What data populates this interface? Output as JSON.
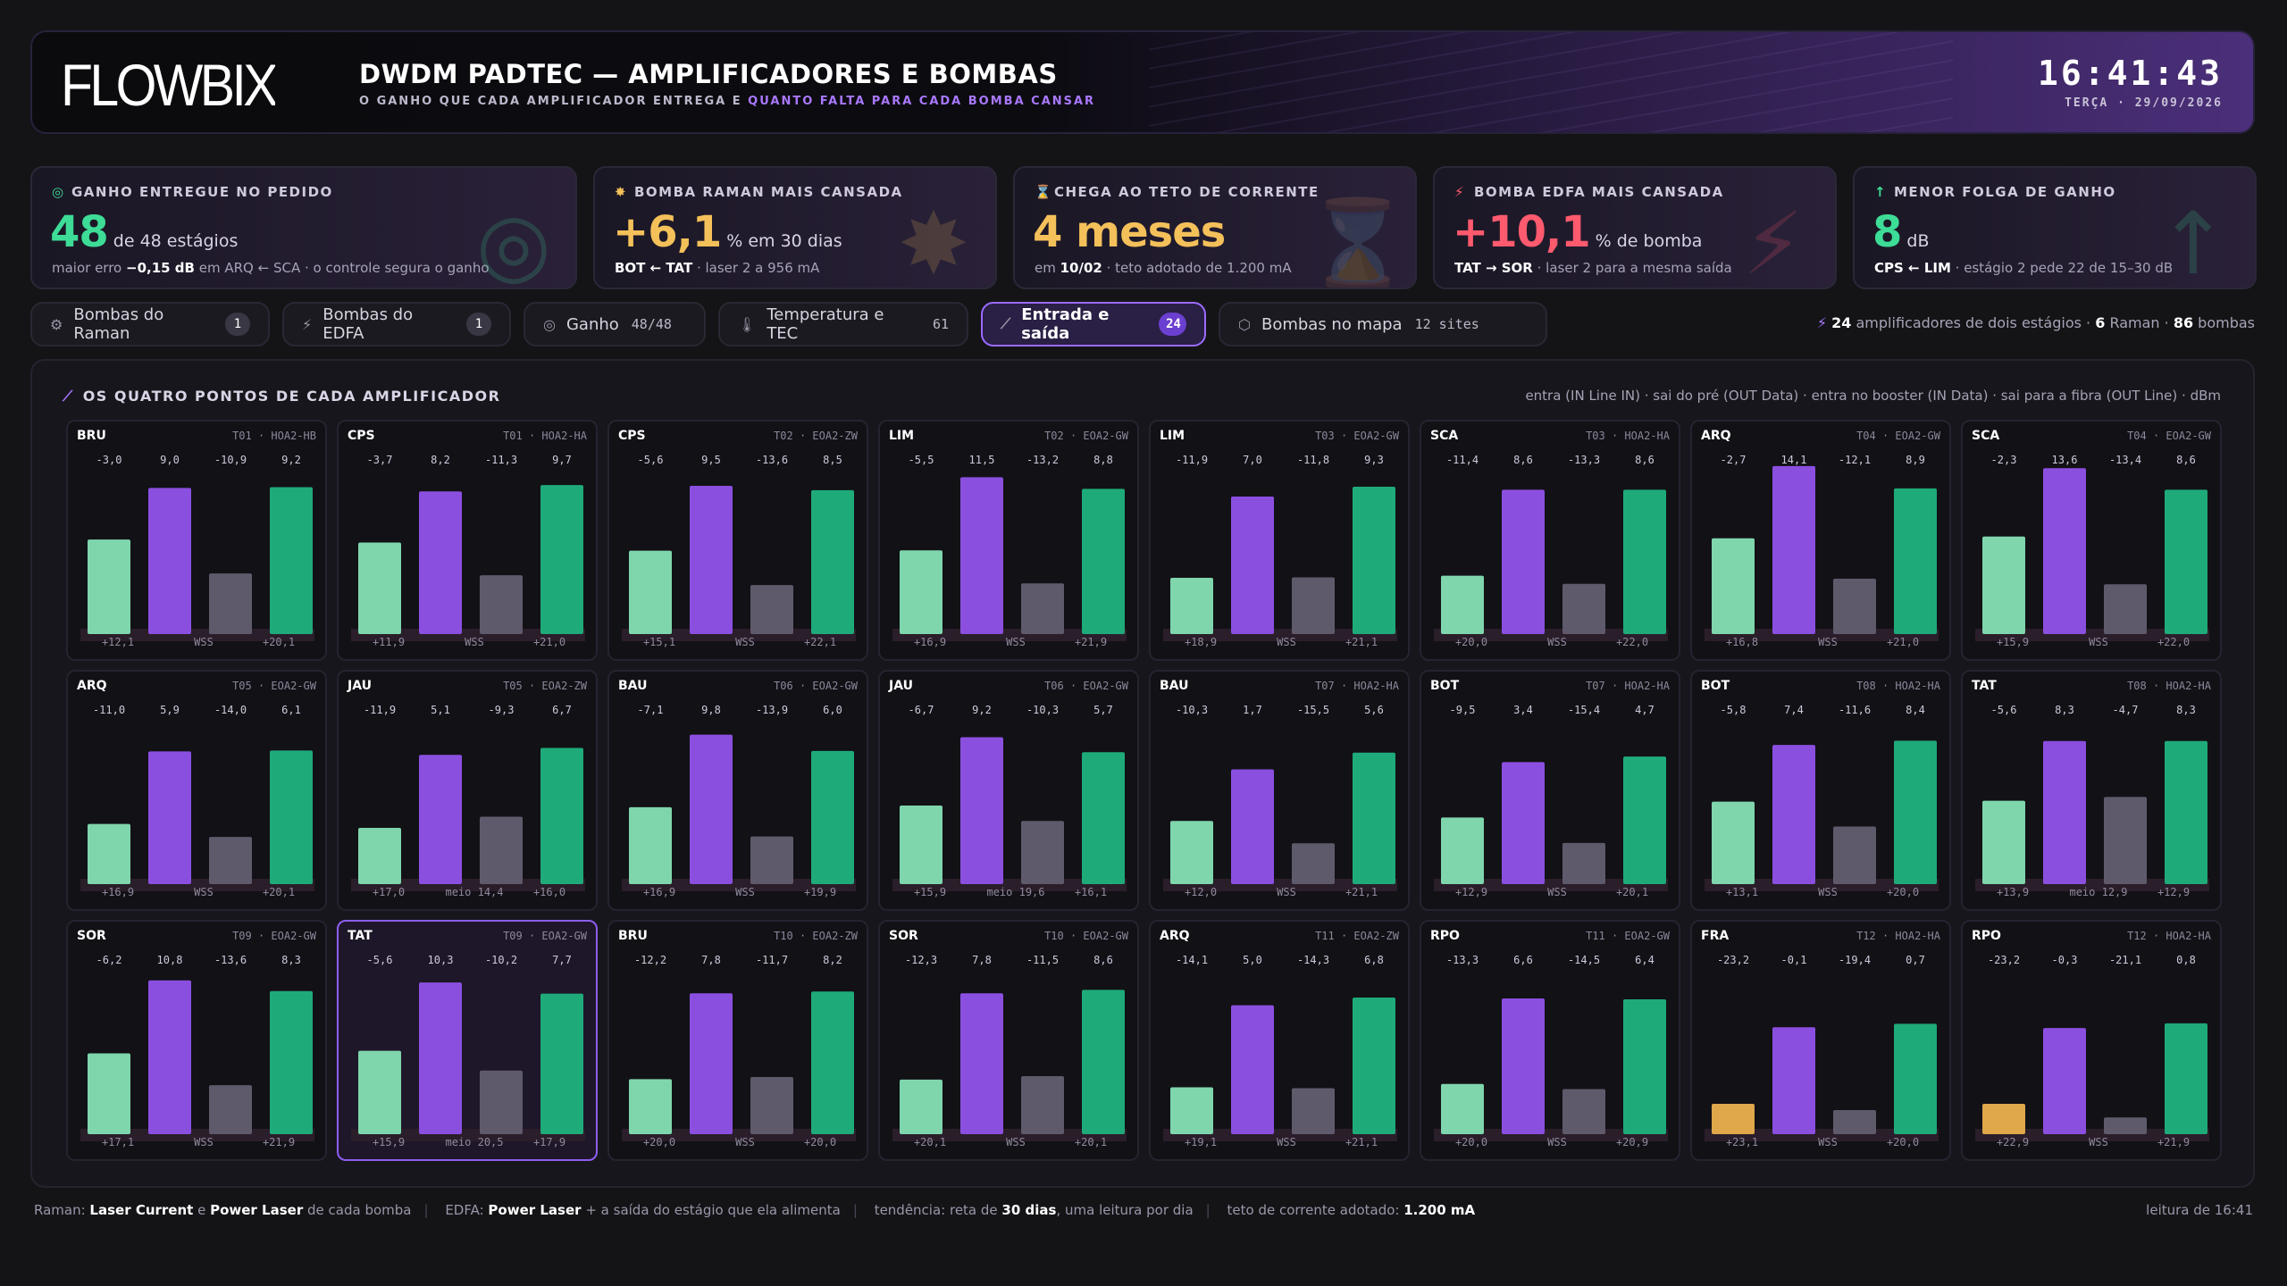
{
  "header": {
    "logo": "FLOWBIX",
    "title": "DWDM PADTEC — AMPLIFICADORES E BOMBAS",
    "subtitle_a": "O GANHO QUE CADA AMPLIFICADOR ENTREGA E ",
    "subtitle_b": "QUANTO FALTA PARA CADA BOMBA CANSAR",
    "time": "16:41:43",
    "date": "TERÇA · 29/09/2026"
  },
  "kpis": [
    {
      "icon": "target-icon",
      "glyph": "◎",
      "label": "GANHO ENTREGUE NO PEDIDO",
      "value": "48",
      "unit": "de 48 estágios",
      "color": "#3ddc97",
      "foot": "maior erro <b>−0,15 dB</b> em ARQ ← SCA · o controle segura o ganho"
    },
    {
      "icon": "gear-icon",
      "glyph": "✸",
      "label": "BOMBA RAMAN MAIS CANSADA",
      "value": "+6,1",
      "unit": "% em 30 dias",
      "color": "#f4c05a",
      "foot": "<b>BOT ← TAT</b> · laser 2 a 956 mA"
    },
    {
      "icon": "hourglass-icon",
      "glyph": "⌛",
      "label": "CHEGA AO TETO DE CORRENTE",
      "value": "4 meses",
      "unit": "",
      "color": "#f4c05a",
      "foot": "em <b>10/02</b> · teto adotado de 1.200 mA"
    },
    {
      "icon": "bolt-icon",
      "glyph": "⚡",
      "label": "BOMBA EDFA MAIS CANSADA",
      "value": "+10,1",
      "unit": "% de bomba",
      "color": "#ff5a6e",
      "foot": "<b>TAT → SOR</b> · laser 2 para a mesma saída"
    },
    {
      "icon": "arrow-up-icon",
      "glyph": "↑",
      "label": "MENOR FOLGA DE GANHO",
      "value": "8",
      "unit": "dB",
      "color": "#3ddc97",
      "foot": "<b>CPS ← LIM</b> · estágio 2 pede 22 de 15–30 dB"
    }
  ],
  "tabs": [
    {
      "icon": "⚙",
      "label": "Bombas do Raman",
      "badge": "1",
      "count": ""
    },
    {
      "icon": "⚡",
      "label": "Bombas do EDFA",
      "badge": "1",
      "count": ""
    },
    {
      "icon": "◎",
      "label": "Ganho",
      "badge": "",
      "count": "48/48"
    },
    {
      "icon": "🌡",
      "label": "Temperatura e TEC",
      "badge": "",
      "count": "61"
    },
    {
      "icon": "⟋",
      "label": "Entrada e saída",
      "badge": "24",
      "count": ""
    },
    {
      "icon": "⬡",
      "label": "Bombas no mapa",
      "badge": "",
      "count": "12 sites"
    }
  ],
  "summary": {
    "amps": "24",
    "amps_label": "amplificadores de dois estágios ·",
    "raman": "6",
    "raman_label": "Raman ·",
    "pumps": "86",
    "pumps_label": "bombas"
  },
  "panel": {
    "title": "OS QUATRO PONTOS DE CADA AMPLIFICADOR",
    "legend": "entra (IN Line IN) · sai do pré (OUT Data) · entra no booster (IN Data) · sai para a fibra (OUT Line) · dBm"
  },
  "colors": {
    "in_line": "#7fd6ad",
    "out_data": "#8b4fe0",
    "in_data": "#5f5a6b",
    "out_line": "#1faa7a",
    "warn": "#e0a84a"
  },
  "chart_data": {
    "type": "bar",
    "series_order": [
      "IN Line IN",
      "OUT Data",
      "IN Data",
      "OUT Line"
    ],
    "ylim": [
      -25,
      12
    ],
    "amplifiers": [
      {
        "site": "BRU",
        "meta": "T01 · HOA2-HB",
        "values": [
          -3.0,
          9.0,
          -10.9,
          9.2
        ],
        "labels": [
          "-3,0",
          "9,0",
          "-10,9",
          "9,2"
        ],
        "foot": [
          "+12,1",
          "WSS",
          "+20,1"
        ]
      },
      {
        "site": "CPS",
        "meta": "T01 · HOA2-HA",
        "values": [
          -3.7,
          8.2,
          -11.3,
          9.7
        ],
        "labels": [
          "-3,7",
          "8,2",
          "-11,3",
          "9,7"
        ],
        "foot": [
          "+11,9",
          "WSS",
          "+21,0"
        ]
      },
      {
        "site": "CPS",
        "meta": "T02 · EOA2-ZW",
        "values": [
          -5.6,
          9.5,
          -13.6,
          8.5
        ],
        "labels": [
          "-5,6",
          "9,5",
          "-13,6",
          "8,5"
        ],
        "foot": [
          "+15,1",
          "WSS",
          "+22,1"
        ]
      },
      {
        "site": "LIM",
        "meta": "T02 · EOA2-GW",
        "values": [
          -5.5,
          11.5,
          -13.2,
          8.8
        ],
        "labels": [
          "-5,5",
          "11,5",
          "-13,2",
          "8,8"
        ],
        "foot": [
          "+16,9",
          "WSS",
          "+21,9"
        ]
      },
      {
        "site": "LIM",
        "meta": "T03 · EOA2-GW",
        "values": [
          -11.9,
          7.0,
          -11.8,
          9.3
        ],
        "labels": [
          "-11,9",
          "7,0",
          "-11,8",
          "9,3"
        ],
        "foot": [
          "+18,9",
          "WSS",
          "+21,1"
        ]
      },
      {
        "site": "SCA",
        "meta": "T03 · HOA2-HA",
        "values": [
          -11.4,
          8.6,
          -13.3,
          8.6
        ],
        "labels": [
          "-11,4",
          "8,6",
          "-13,3",
          "8,6"
        ],
        "foot": [
          "+20,0",
          "WSS",
          "+22,0"
        ]
      },
      {
        "site": "ARQ",
        "meta": "T04 · EOA2-GW",
        "values": [
          -2.7,
          14.1,
          -12.1,
          8.9
        ],
        "labels": [
          "-2,7",
          "14,1",
          "-12,1",
          "8,9"
        ],
        "foot": [
          "+16,8",
          "WSS",
          "+21,0"
        ]
      },
      {
        "site": "SCA",
        "meta": "T04 · EOA2-GW",
        "values": [
          -2.3,
          13.6,
          -13.4,
          8.6
        ],
        "labels": [
          "-2,3",
          "13,6",
          "-13,4",
          "8,6"
        ],
        "foot": [
          "+15,9",
          "WSS",
          "+22,0"
        ]
      },
      {
        "site": "ARQ",
        "meta": "T05 · EOA2-GW",
        "values": [
          -11.0,
          5.9,
          -14.0,
          6.1
        ],
        "labels": [
          "-11,0",
          "5,9",
          "-14,0",
          "6,1"
        ],
        "foot": [
          "+16,9",
          "WSS",
          "+20,1"
        ]
      },
      {
        "site": "JAU",
        "meta": "T05 · EOA2-ZW",
        "values": [
          -11.9,
          5.1,
          -9.3,
          6.7
        ],
        "labels": [
          "-11,9",
          "5,1",
          "-9,3",
          "6,7"
        ],
        "foot": [
          "+17,0",
          "meio 14,4",
          "+16,0"
        ]
      },
      {
        "site": "BAU",
        "meta": "T06 · EOA2-GW",
        "values": [
          -7.1,
          9.8,
          -13.9,
          6.0
        ],
        "labels": [
          "-7,1",
          "9,8",
          "-13,9",
          "6,0"
        ],
        "foot": [
          "+16,9",
          "WSS",
          "+19,9"
        ]
      },
      {
        "site": "JAU",
        "meta": "T06 · EOA2-GW",
        "values": [
          -6.7,
          9.2,
          -10.3,
          5.7
        ],
        "labels": [
          "-6,7",
          "9,2",
          "-10,3",
          "5,7"
        ],
        "foot": [
          "+15,9",
          "meio 19,6",
          "+16,1"
        ]
      },
      {
        "site": "BAU",
        "meta": "T07 · HOA2-HA",
        "values": [
          -10.3,
          1.7,
          -15.5,
          5.6
        ],
        "labels": [
          "-10,3",
          "1,7",
          "-15,5",
          "5,6"
        ],
        "foot": [
          "+12,0",
          "WSS",
          "+21,1"
        ]
      },
      {
        "site": "BOT",
        "meta": "T07 · HOA2-HA",
        "values": [
          -9.5,
          3.4,
          -15.4,
          4.7
        ],
        "labels": [
          "-9,5",
          "3,4",
          "-15,4",
          "4,7"
        ],
        "foot": [
          "+12,9",
          "WSS",
          "+20,1"
        ]
      },
      {
        "site": "BOT",
        "meta": "T08 · HOA2-HA",
        "values": [
          -5.8,
          7.4,
          -11.6,
          8.4
        ],
        "labels": [
          "-5,8",
          "7,4",
          "-11,6",
          "8,4"
        ],
        "foot": [
          "+13,1",
          "WSS",
          "+20,0"
        ]
      },
      {
        "site": "TAT",
        "meta": "T08 · HOA2-HA",
        "values": [
          -5.6,
          8.3,
          -4.7,
          8.3
        ],
        "labels": [
          "-5,6",
          "8,3",
          "-4,7",
          "8,3"
        ],
        "foot": [
          "+13,9",
          "meio 12,9",
          "+12,9"
        ]
      },
      {
        "site": "SOR",
        "meta": "T09 · EOA2-GW",
        "values": [
          -6.2,
          10.8,
          -13.6,
          8.3
        ],
        "labels": [
          "-6,2",
          "10,8",
          "-13,6",
          "8,3"
        ],
        "foot": [
          "+17,1",
          "WSS",
          "+21,9"
        ]
      },
      {
        "site": "TAT",
        "meta": "T09 · EOA2-GW",
        "values": [
          -5.6,
          10.3,
          -10.2,
          7.7
        ],
        "labels": [
          "-5,6",
          "10,3",
          "-10,2",
          "7,7"
        ],
        "foot": [
          "+15,9",
          "meio 20,5",
          "+17,9"
        ],
        "selected": true
      },
      {
        "site": "BRU",
        "meta": "T10 · EOA2-ZW",
        "values": [
          -12.2,
          7.8,
          -11.7,
          8.2
        ],
        "labels": [
          "-12,2",
          "7,8",
          "-11,7",
          "8,2"
        ],
        "foot": [
          "+20,0",
          "WSS",
          "+20,0"
        ]
      },
      {
        "site": "SOR",
        "meta": "T10 · EOA2-GW",
        "values": [
          -12.3,
          7.8,
          -11.5,
          8.6
        ],
        "labels": [
          "-12,3",
          "7,8",
          "-11,5",
          "8,6"
        ],
        "foot": [
          "+20,1",
          "WSS",
          "+20,1"
        ]
      },
      {
        "site": "ARQ",
        "meta": "T11 · EOA2-ZW",
        "values": [
          -14.1,
          5.0,
          -14.3,
          6.8
        ],
        "labels": [
          "-14,1",
          "5,0",
          "-14,3",
          "6,8"
        ],
        "foot": [
          "+19,1",
          "WSS",
          "+21,1"
        ]
      },
      {
        "site": "RPO",
        "meta": "T11 · EOA2-GW",
        "values": [
          -13.3,
          6.6,
          -14.5,
          6.4
        ],
        "labels": [
          "-13,3",
          "6,6",
          "-14,5",
          "6,4"
        ],
        "foot": [
          "+20,0",
          "WSS",
          "+20,9"
        ]
      },
      {
        "site": "FRA",
        "meta": "T12 · HOA2-HA",
        "values": [
          -23.2,
          -0.1,
          -19.4,
          0.7
        ],
        "labels": [
          "-23,2",
          "-0,1",
          "-19,4",
          "0,7"
        ],
        "foot": [
          "+23,1",
          "WSS",
          "+20,0"
        ],
        "warn": true
      },
      {
        "site": "RPO",
        "meta": "T12 · HOA2-HA",
        "values": [
          -23.2,
          -0.3,
          -21.1,
          0.8
        ],
        "labels": [
          "-23,2",
          "-0,3",
          "-21,1",
          "0,8"
        ],
        "foot": [
          "+22,9",
          "WSS",
          "+21,9"
        ],
        "warn": true
      }
    ]
  },
  "footer": {
    "raman": "Raman: <b>Laser Current</b> e <b>Power Laser</b> de cada bomba",
    "edfa": "EDFA: <b>Power Laser</b> + a saída do estágio que ela alimenta",
    "trend": "tendência: reta de <b>30 dias</b>, uma leitura por dia",
    "ceiling": "teto de corrente adotado: <b>1.200 mA</b>",
    "reading": "leitura de 16:41"
  }
}
